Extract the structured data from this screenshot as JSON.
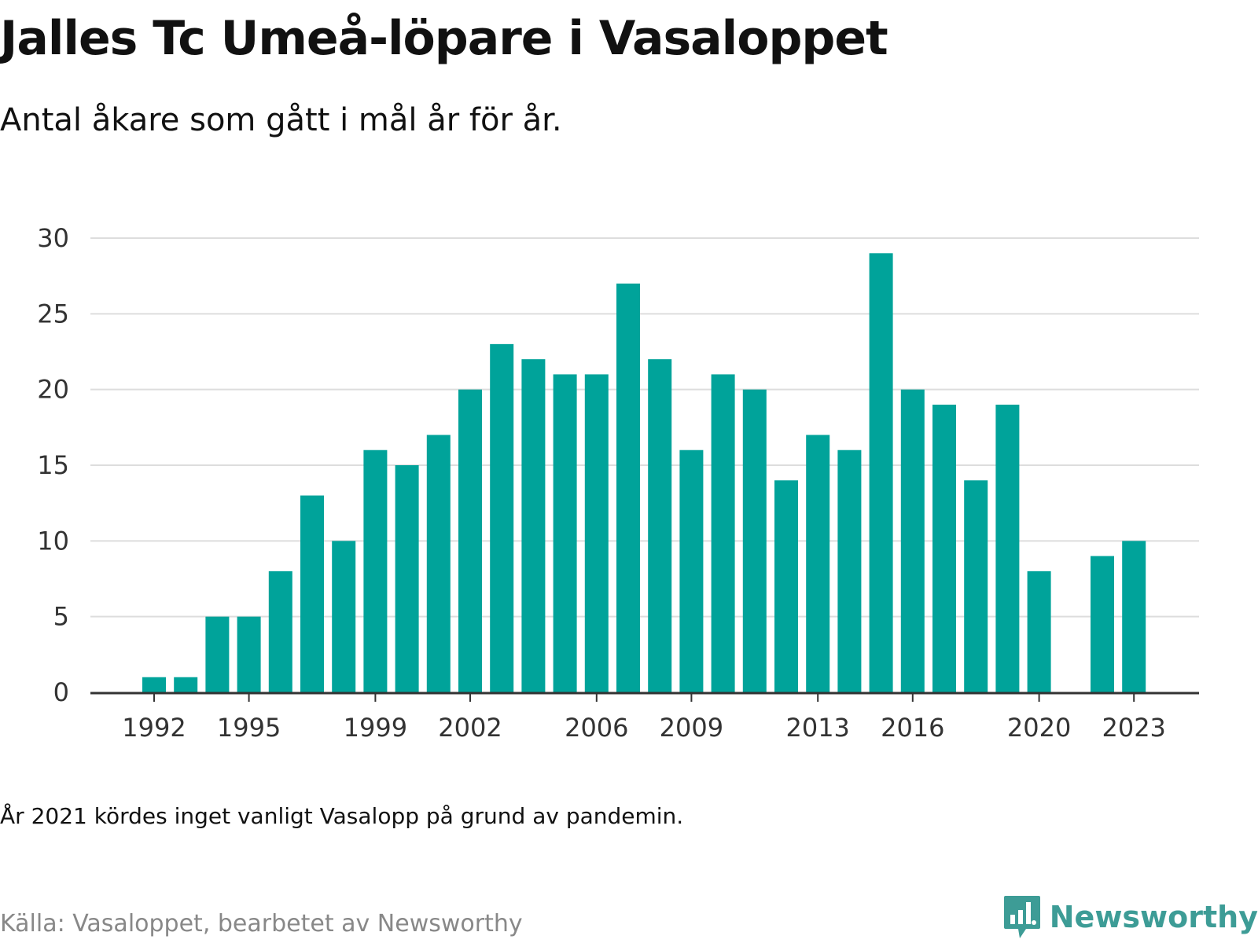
{
  "title": "Jalles Tc Umeå-löpare i Vasaloppet",
  "subtitle": "Antal åkare som gått i mål år för år.",
  "note": "År 2021 kördes inget vanligt Vasalopp på grund av pandemin.",
  "source": "Källa: Vasaloppet, bearbetet av Newsworthy",
  "brand": "Newsworthy",
  "logo_icon": "bar-chart-speech-bubble-icon",
  "colors": {
    "bar": "#00a39a",
    "grid": "#dddddd",
    "axis": "#333333",
    "brand": "#3d9c96",
    "source": "#888888"
  },
  "chart_data": {
    "type": "bar",
    "title": "Jalles Tc Umeå-löpare i Vasaloppet",
    "subtitle": "Antal åkare som gått i mål år för år.",
    "xlabel": "",
    "ylabel": "",
    "ylim": [
      0,
      30
    ],
    "yticks": [
      0,
      5,
      10,
      15,
      20,
      25,
      30
    ],
    "xlim": [
      1990,
      2024
    ],
    "xticks": [
      1992,
      1995,
      1999,
      2002,
      2006,
      2009,
      2013,
      2016,
      2020,
      2023
    ],
    "grid": true,
    "x": [
      1992,
      1993,
      1994,
      1995,
      1996,
      1997,
      1998,
      1999,
      2000,
      2001,
      2002,
      2003,
      2004,
      2005,
      2006,
      2007,
      2008,
      2009,
      2010,
      2011,
      2012,
      2013,
      2014,
      2015,
      2016,
      2017,
      2018,
      2019,
      2020,
      2022,
      2023
    ],
    "values": [
      1,
      1,
      5,
      5,
      8,
      13,
      10,
      16,
      15,
      17,
      20,
      23,
      22,
      21,
      21,
      27,
      22,
      16,
      21,
      20,
      14,
      17,
      16,
      29,
      20,
      19,
      14,
      19,
      8,
      9,
      10
    ]
  }
}
